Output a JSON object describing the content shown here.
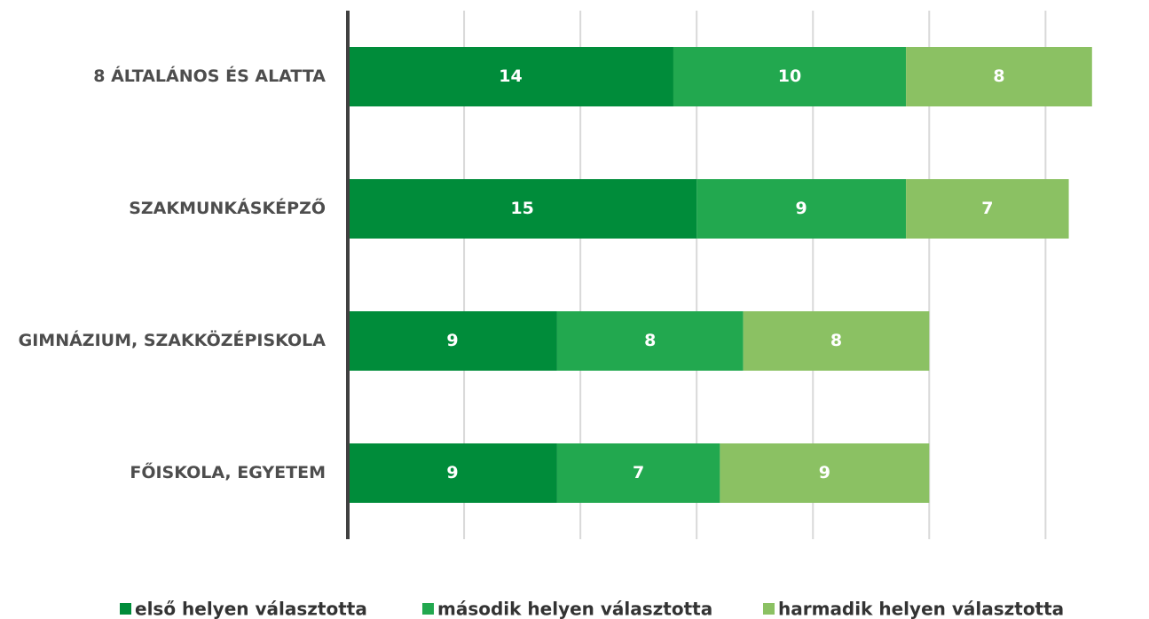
{
  "chart_data": {
    "type": "stacked_barh",
    "categories": [
      "8 ÁLTALÁNOS ÉS ALATTA",
      "SZAKMUNKÁSKÉPZŐ",
      "GIMNÁZIUM, SZAKKÖZÉPISKOLA",
      "FŐISKOLA, EGYETEM"
    ],
    "series": [
      {
        "name": "első helyen választotta",
        "color": "#008c3a",
        "values": [
          14,
          15,
          9,
          9
        ]
      },
      {
        "name": "második helyen választotta",
        "color": "#22a84f",
        "values": [
          10,
          9,
          8,
          7
        ]
      },
      {
        "name": "harmadik helyen választotta",
        "color": "#8bc163",
        "values": [
          8,
          7,
          8,
          9
        ]
      }
    ],
    "xlim": [
      0,
      33
    ],
    "xticks": [
      0,
      5,
      10,
      15,
      20,
      25,
      30
    ],
    "grid": true,
    "legend": "bottom"
  }
}
